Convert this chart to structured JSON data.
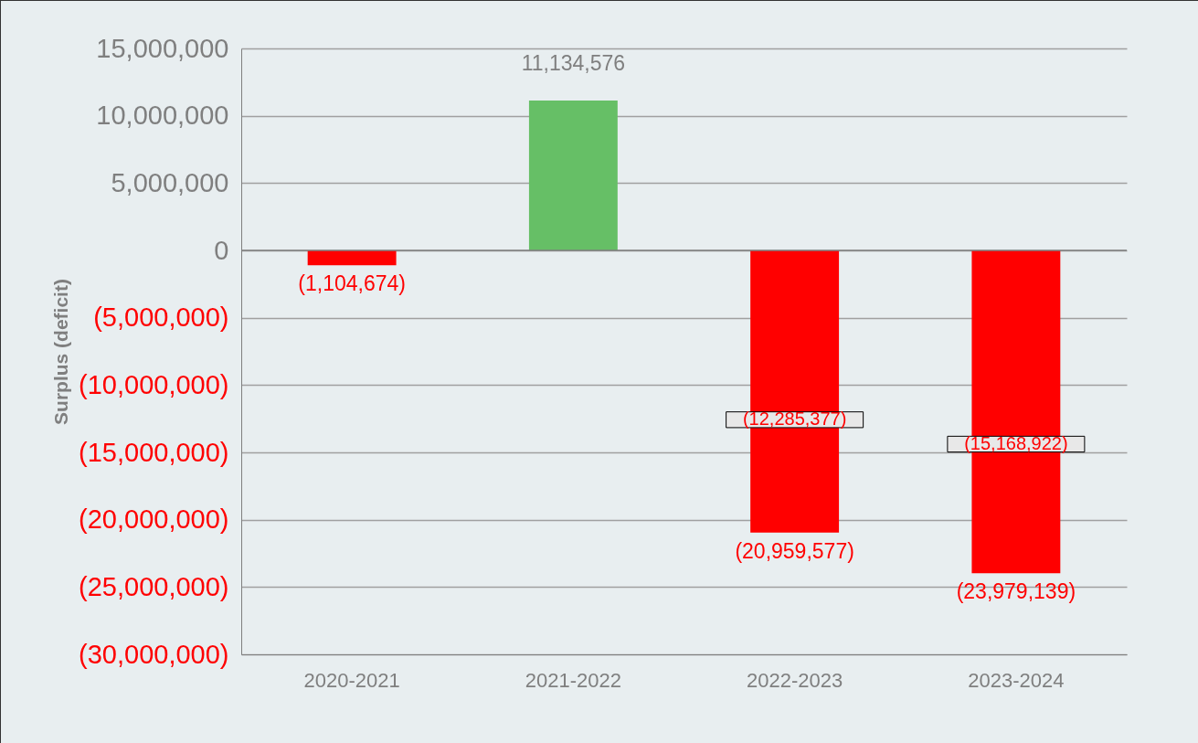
{
  "chart_data": {
    "type": "bar",
    "ylabel": "Surplus (deficit)",
    "categories": [
      "2020-2021",
      "2021-2022",
      "2022-2023",
      "2023-2024"
    ],
    "values": [
      -1104674,
      11134576,
      -20959577,
      -23979139
    ],
    "colors": [
      "#ff0000",
      "#66bf66",
      "#ff0000",
      "#ff0000"
    ],
    "value_labels": [
      "(1,104,674)",
      "11,134,576",
      "(20,959,577)",
      "(23,979,139)"
    ],
    "ylim": [
      -30000000,
      15000000
    ],
    "yticks": [
      {
        "value": -30000000,
        "label": "(30,000,000)"
      },
      {
        "value": -25000000,
        "label": "(25,000,000)"
      },
      {
        "value": -20000000,
        "label": "(20,000,000)"
      },
      {
        "value": -15000000,
        "label": "(15,000,000)"
      },
      {
        "value": -10000000,
        "label": "(10,000,000)"
      },
      {
        "value": -5000000,
        "label": "(5,000,000)"
      },
      {
        "value": 0,
        "label": "0"
      },
      {
        "value": 5000000,
        "label": "5,000,000"
      },
      {
        "value": 10000000,
        "label": "10,000,000"
      },
      {
        "value": 15000000,
        "label": "15,000,000"
      }
    ],
    "annotations": [
      "(12,285,377)",
      "(15,168,922)"
    ],
    "grid": "y"
  }
}
